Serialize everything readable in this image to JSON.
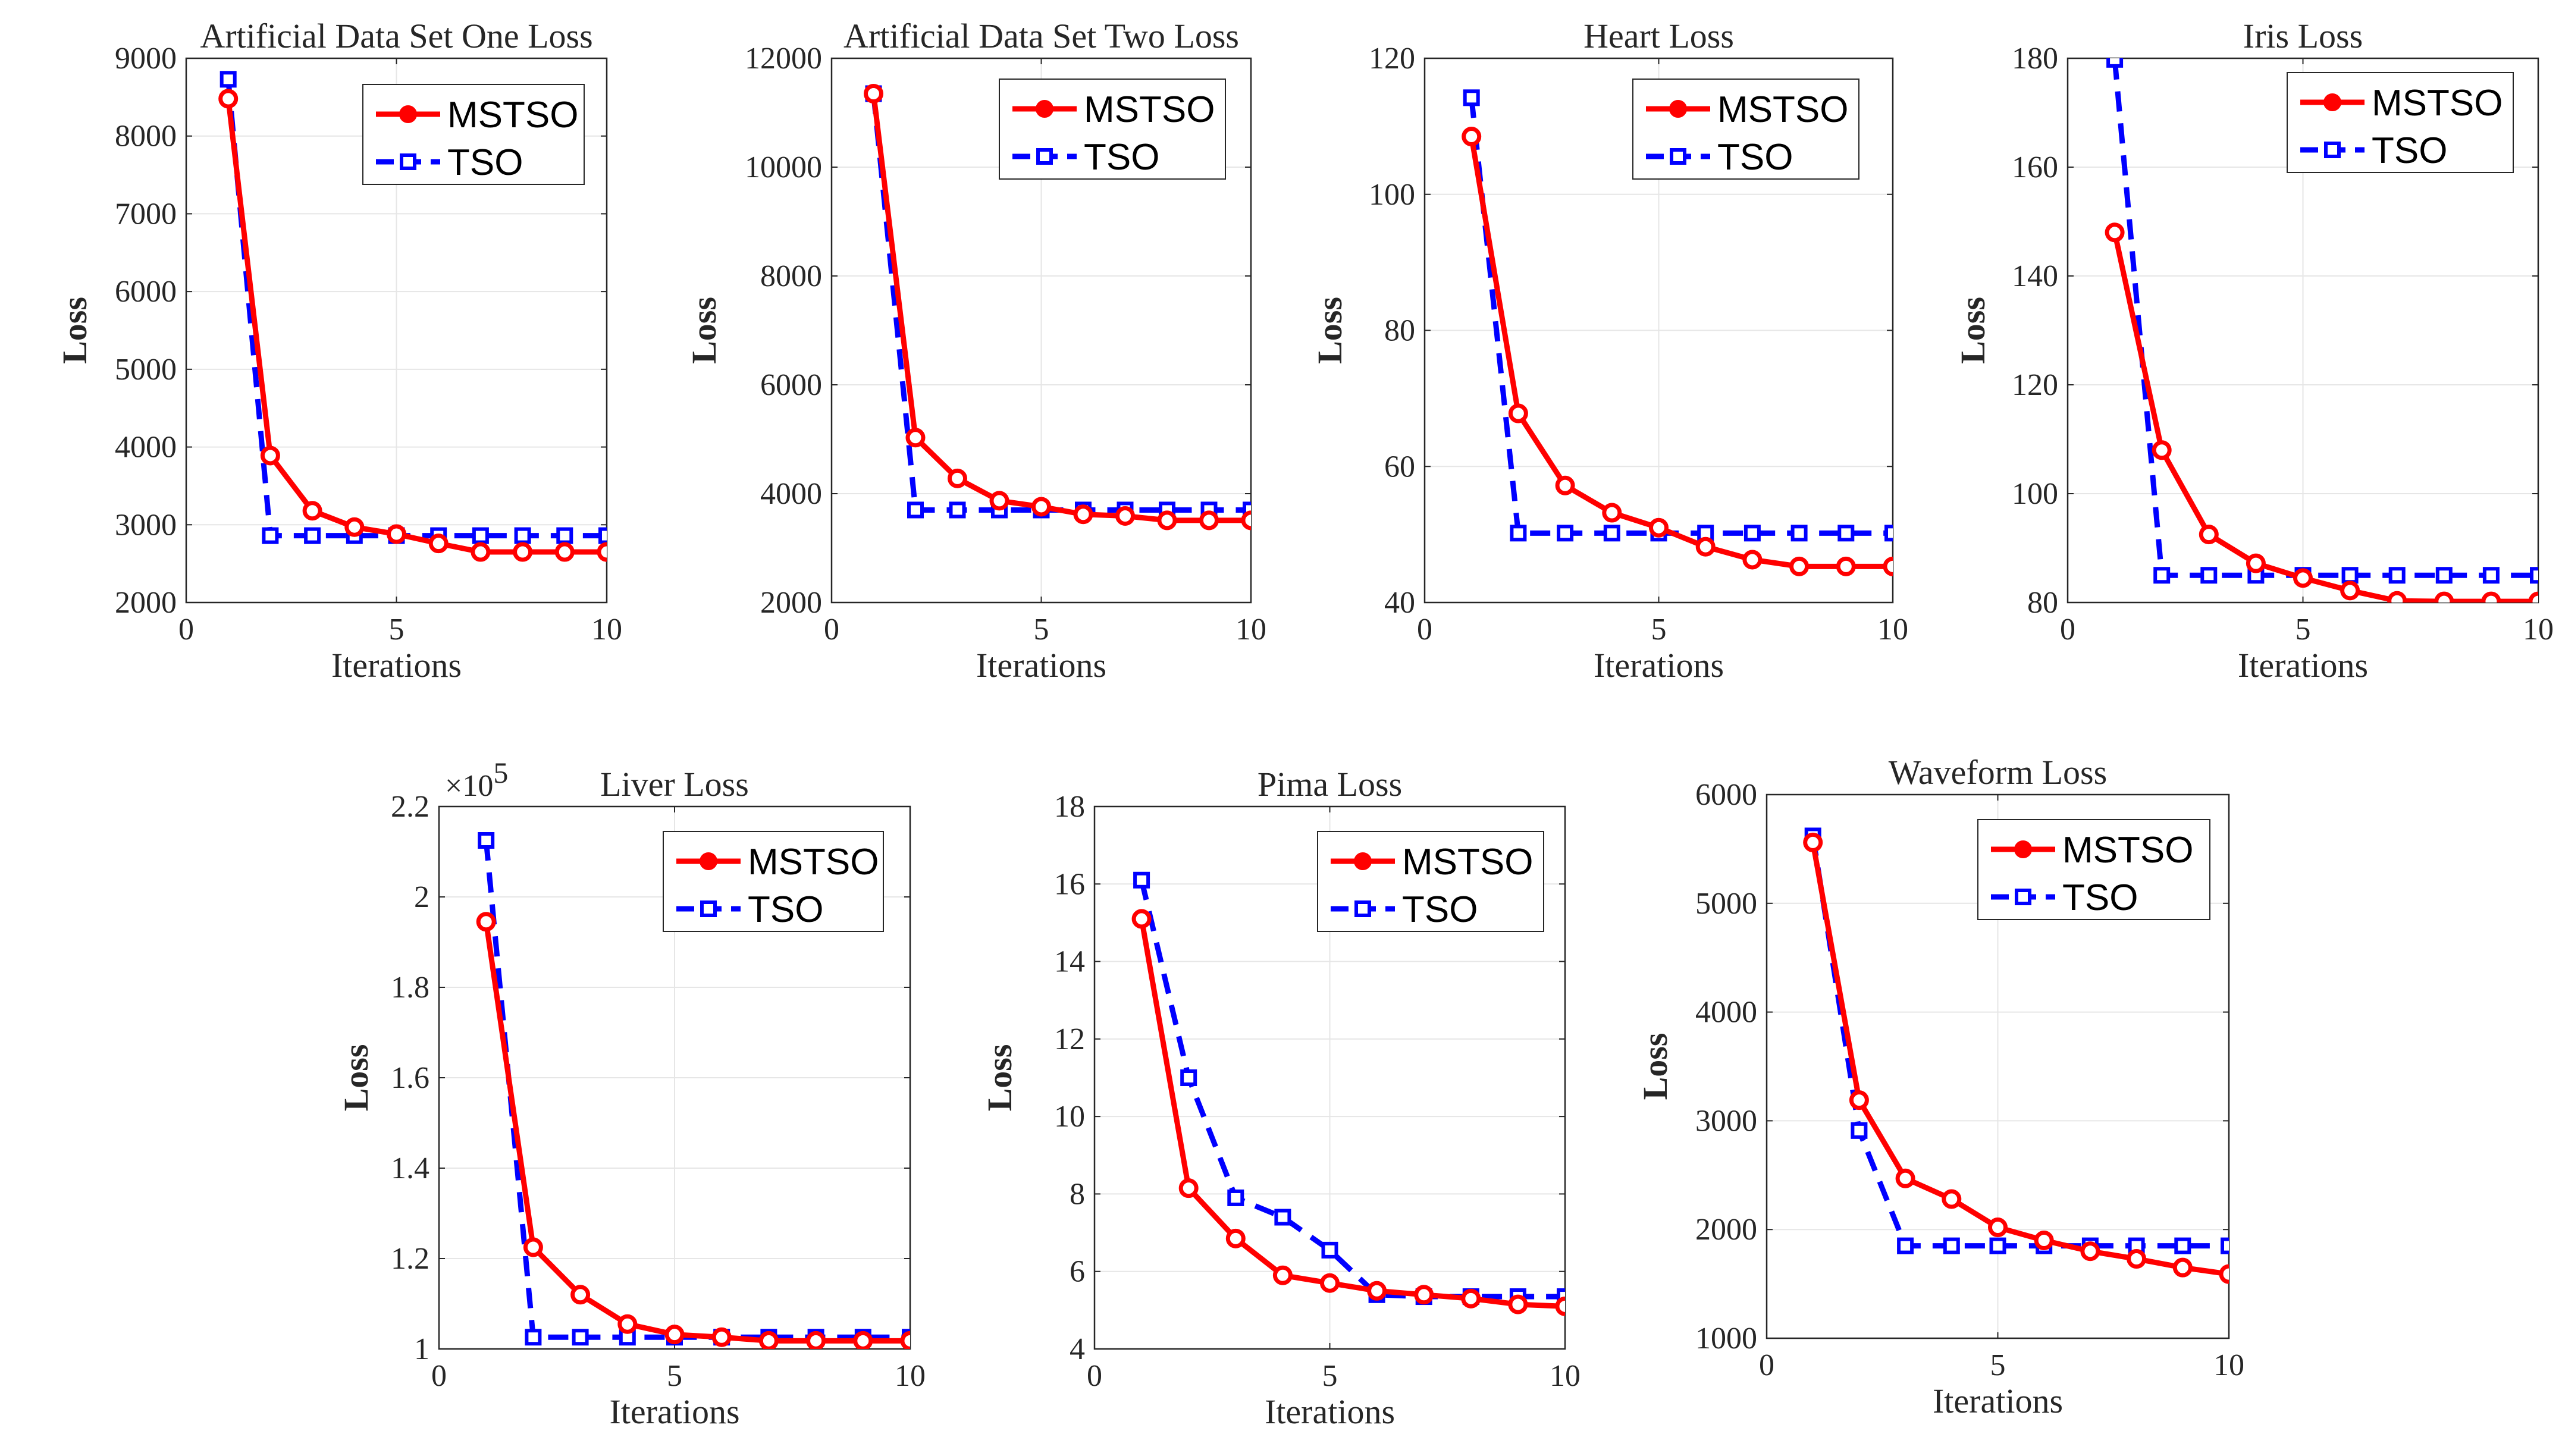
{
  "colors": {
    "mstso": "#ff0000",
    "tso": "#0000ff",
    "grid": "#e6e6e6",
    "axis": "#262626"
  },
  "legend_labels": [
    "MSTSO",
    "TSO"
  ],
  "chart_data": [
    {
      "type": "line",
      "title": "Artificial Data Set One Loss",
      "xlabel": "Iterations",
      "ylabel": "Loss",
      "xlim": [
        0,
        10
      ],
      "ylim": [
        2000,
        9000
      ],
      "xticks": [
        0,
        5,
        10
      ],
      "yticks": [
        2000,
        3000,
        4000,
        5000,
        6000,
        7000,
        8000,
        9000
      ],
      "ytick_labels": [
        "2000",
        "3000",
        "4000",
        "5000",
        "6000",
        "7000",
        "8000",
        "9000"
      ],
      "multiplier": "",
      "legend": "top-right",
      "grid": true,
      "x": [
        1,
        2,
        3,
        4,
        5,
        6,
        7,
        8,
        9,
        10
      ],
      "series": [
        {
          "name": "MSTSO",
          "values": [
            8480,
            3890,
            3180,
            2970,
            2880,
            2760,
            2650,
            2650,
            2650,
            2650
          ]
        },
        {
          "name": "TSO",
          "values": [
            8730,
            2860,
            2860,
            2860,
            2860,
            2860,
            2860,
            2860,
            2860,
            2860
          ]
        }
      ]
    },
    {
      "type": "line",
      "title": "Artificial Data Set Two Loss",
      "xlabel": "Iterations",
      "ylabel": "Loss",
      "xlim": [
        0,
        10
      ],
      "ylim": [
        2000,
        12000
      ],
      "xticks": [
        0,
        5,
        10
      ],
      "yticks": [
        2000,
        4000,
        6000,
        8000,
        10000,
        12000
      ],
      "ytick_labels": [
        "2000",
        "4000",
        "6000",
        "8000",
        "10000",
        "12000"
      ],
      "multiplier": "",
      "legend": "top-right",
      "grid": true,
      "x": [
        1,
        2,
        3,
        4,
        5,
        6,
        7,
        8,
        9,
        10
      ],
      "series": [
        {
          "name": "MSTSO",
          "values": [
            11350,
            5030,
            4280,
            3870,
            3760,
            3620,
            3590,
            3510,
            3510,
            3510
          ]
        },
        {
          "name": "TSO",
          "values": [
            11350,
            3700,
            3700,
            3700,
            3700,
            3700,
            3700,
            3700,
            3700,
            3700
          ]
        }
      ]
    },
    {
      "type": "line",
      "title": "Heart Loss",
      "xlabel": "Iterations",
      "ylabel": "Loss",
      "xlim": [
        0,
        10
      ],
      "ylim": [
        40,
        120
      ],
      "xticks": [
        0,
        5,
        10
      ],
      "yticks": [
        40,
        60,
        80,
        100,
        120
      ],
      "ytick_labels": [
        "40",
        "60",
        "80",
        "100",
        "120"
      ],
      "multiplier": "",
      "legend": "top-right",
      "grid": true,
      "x": [
        1,
        2,
        3,
        4,
        5,
        6,
        7,
        8,
        9,
        10
      ],
      "series": [
        {
          "name": "MSTSO",
          "values": [
            108.5,
            67.8,
            57.2,
            53.2,
            51.0,
            48.2,
            46.3,
            45.3,
            45.3,
            45.3
          ]
        },
        {
          "name": "TSO",
          "values": [
            114.2,
            50.2,
            50.2,
            50.2,
            50.2,
            50.2,
            50.2,
            50.2,
            50.2,
            50.2
          ]
        }
      ]
    },
    {
      "type": "line",
      "title": "Iris Loss",
      "xlabel": "Iterations",
      "ylabel": "Loss",
      "xlim": [
        0,
        10
      ],
      "ylim": [
        80,
        180
      ],
      "xticks": [
        0,
        5,
        10
      ],
      "yticks": [
        80,
        100,
        120,
        140,
        160,
        180
      ],
      "ytick_labels": [
        "80",
        "100",
        "120",
        "140",
        "160",
        "180"
      ],
      "multiplier": "",
      "legend": "top-right",
      "grid": true,
      "x": [
        1,
        2,
        3,
        4,
        5,
        6,
        7,
        8,
        9,
        10
      ],
      "series": [
        {
          "name": "MSTSO",
          "values": [
            148.0,
            108.0,
            92.5,
            87.2,
            84.5,
            82.2,
            80.3,
            80.2,
            80.2,
            80.2
          ]
        },
        {
          "name": "TSO",
          "values": [
            179.8,
            85.0,
            85.0,
            85.0,
            85.0,
            85.0,
            85.0,
            85.0,
            85.0,
            85.0
          ]
        }
      ]
    },
    {
      "type": "line",
      "title": "Liver Loss",
      "xlabel": "Iterations",
      "ylabel": "Loss",
      "xlim": [
        0,
        10
      ],
      "ylim": [
        100000,
        220000
      ],
      "xticks": [
        0,
        5,
        10
      ],
      "yticks": [
        100000,
        120000,
        140000,
        160000,
        180000,
        200000,
        220000
      ],
      "ytick_labels": [
        "1",
        "1.2",
        "1.4",
        "1.6",
        "1.8",
        "2",
        "2.2"
      ],
      "multiplier": "×10",
      "multiplier_exponent": "5",
      "legend": "top-right",
      "grid": true,
      "x": [
        1,
        2,
        3,
        4,
        5,
        6,
        7,
        8,
        9,
        10
      ],
      "series": [
        {
          "name": "MSTSO",
          "values": [
            194500,
            122500,
            112000,
            105500,
            103200,
            102600,
            101800,
            101800,
            101800,
            101800
          ]
        },
        {
          "name": "TSO",
          "values": [
            212500,
            102600,
            102600,
            102600,
            102600,
            102600,
            102600,
            102600,
            102600,
            102600
          ]
        }
      ]
    },
    {
      "type": "line",
      "title": "Pima Loss",
      "xlabel": "Iterations",
      "ylabel": "Loss",
      "xlim": [
        0,
        10
      ],
      "ylim": [
        4,
        18
      ],
      "xticks": [
        0,
        5,
        10
      ],
      "yticks": [
        4,
        6,
        8,
        10,
        12,
        14,
        16,
        18
      ],
      "ytick_labels": [
        "4",
        "6",
        "8",
        "10",
        "12",
        "14",
        "16",
        "18"
      ],
      "multiplier": "",
      "legend": "top-right",
      "grid": true,
      "x": [
        1,
        2,
        3,
        4,
        5,
        6,
        7,
        8,
        9,
        10
      ],
      "series": [
        {
          "name": "MSTSO",
          "values": [
            15.1,
            8.15,
            6.85,
            5.9,
            5.7,
            5.5,
            5.4,
            5.3,
            5.15,
            5.1
          ]
        },
        {
          "name": "TSO",
          "values": [
            16.1,
            11.0,
            7.9,
            7.4,
            6.55,
            5.4,
            5.35,
            5.35,
            5.35,
            5.35
          ]
        }
      ]
    },
    {
      "type": "line",
      "title": "Waveform Loss",
      "xlabel": "Iterations",
      "ylabel": "Loss",
      "xlim": [
        0,
        10
      ],
      "ylim": [
        1000,
        6000
      ],
      "xticks": [
        0,
        5,
        10
      ],
      "yticks": [
        1000,
        2000,
        3000,
        4000,
        5000,
        6000
      ],
      "ytick_labels": [
        "1000",
        "2000",
        "3000",
        "4000",
        "5000",
        "6000"
      ],
      "multiplier": "",
      "legend": "top-right",
      "grid": true,
      "x": [
        1,
        2,
        3,
        4,
        5,
        6,
        7,
        8,
        9,
        10
      ],
      "series": [
        {
          "name": "MSTSO",
          "values": [
            5560,
            3190,
            2470,
            2280,
            2020,
            1900,
            1800,
            1730,
            1650,
            1590
          ]
        },
        {
          "name": "TSO",
          "values": [
            5620,
            2910,
            1850,
            1850,
            1850,
            1850,
            1850,
            1850,
            1850,
            1850
          ]
        }
      ]
    }
  ]
}
